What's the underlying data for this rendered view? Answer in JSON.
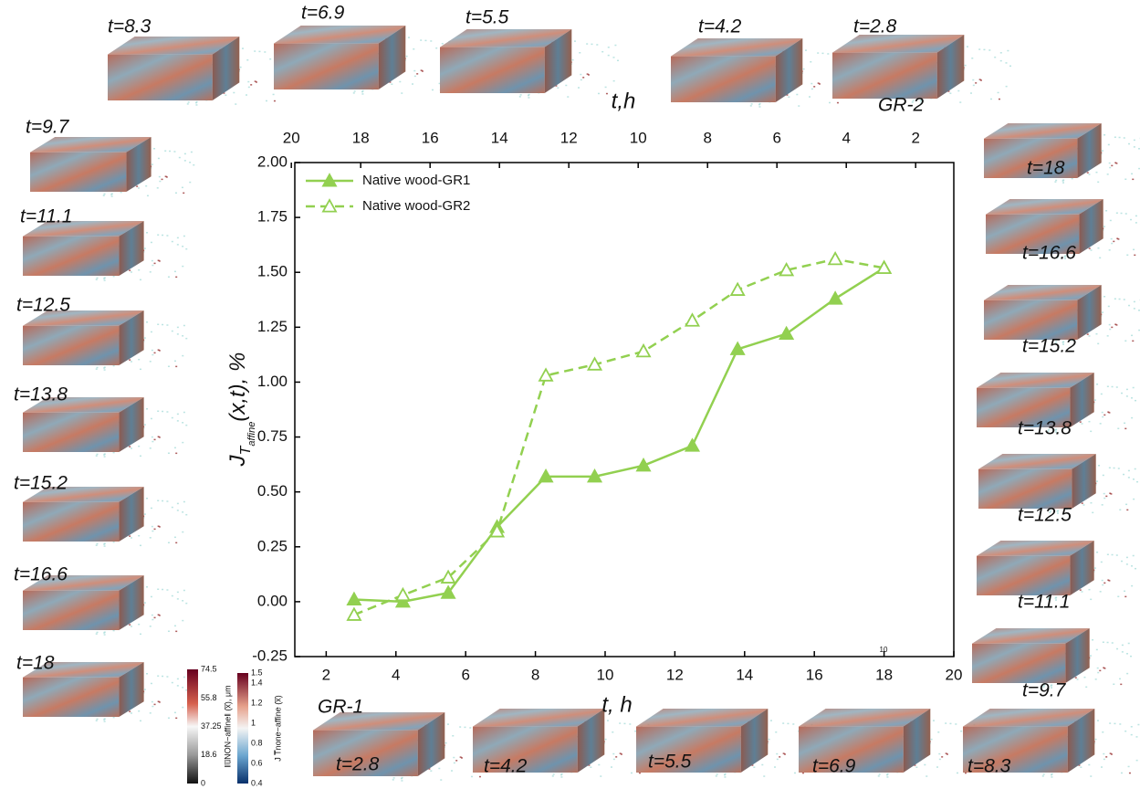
{
  "chart_data": {
    "type": "line",
    "x_label": "t, h",
    "x2_label": "t,h",
    "y_label": {
      "main": "J",
      "sub": "T",
      "subsub": "affine",
      "rest": "(x,t), %"
    },
    "xlim": [
      1.1,
      20
    ],
    "xticks": [
      2,
      4,
      6,
      8,
      10,
      12,
      14,
      16,
      18,
      20
    ],
    "x2lim": [
      19.9,
      0.9
    ],
    "x2ticks": [
      20,
      18,
      16,
      14,
      12,
      10,
      8,
      6,
      4,
      2
    ],
    "ylim": [
      -0.25,
      2.0
    ],
    "yticks": [
      {
        "value": -0.25,
        "label": "-0.25"
      },
      {
        "value": 0,
        "label": "0.00"
      },
      {
        "value": 0.25,
        "label": "0.25"
      },
      {
        "value": 0.5,
        "label": "0.50"
      },
      {
        "value": 0.75,
        "label": "0.75"
      },
      {
        "value": 1,
        "label": "1.00"
      },
      {
        "value": 1.25,
        "label": "1.25"
      },
      {
        "value": 1.5,
        "label": "1.50"
      },
      {
        "value": 1.75,
        "label": "1.75"
      },
      {
        "value": 2,
        "label": "2.00"
      }
    ],
    "legend": "top-left",
    "annotation": "10",
    "series": [
      {
        "name": "Native wood-GR1",
        "color": "#92d050",
        "dashed": false,
        "filled": true,
        "x": [
          2.8,
          4.2,
          5.5,
          6.9,
          8.3,
          9.7,
          11.1,
          12.5,
          13.8,
          15.2,
          16.6,
          18
        ],
        "values": [
          0.01,
          0.0,
          0.04,
          0.34,
          0.57,
          0.57,
          0.62,
          0.71,
          1.15,
          1.22,
          1.38,
          1.52
        ]
      },
      {
        "name": "Native wood-GR2",
        "color": "#92d050",
        "dashed": true,
        "filled": false,
        "x": [
          2.8,
          4.2,
          5.5,
          6.9,
          8.3,
          9.7,
          11.1,
          12.5,
          13.8,
          15.2,
          16.6,
          18
        ],
        "values": [
          -0.06,
          0.03,
          0.11,
          0.32,
          1.03,
          1.08,
          1.14,
          1.28,
          1.42,
          1.51,
          1.56,
          1.52
        ]
      }
    ]
  },
  "group_labels": [
    "GR-1",
    "GR-2"
  ],
  "panels": {
    "top": [
      "t=8.3",
      "t=6.9",
      "t=5.5",
      "t=4.2",
      "t=2.8"
    ],
    "left": [
      "t=9.7",
      "t=11.1",
      "t=12.5",
      "t=13.8",
      "t=15.2",
      "t=16.6",
      "t=18"
    ],
    "right": [
      "t=18",
      "t=16.6",
      "t=15.2",
      "t=13.8",
      "t=12.5",
      "t=11.1",
      "t=9.7"
    ],
    "bottom": [
      "t=2.8",
      "t=4.2",
      "t=5.5",
      "t=6.9",
      "t=8.3"
    ]
  },
  "colorbars": [
    {
      "title": "‖u̅NON−affine‖ (x̅), μm",
      "lim": [
        0,
        74.5
      ],
      "ticks": [
        74.5,
        55.8,
        37.25,
        18.6,
        0
      ]
    },
    {
      "title": "J T̅none−affine (x̅)",
      "lim": [
        0.4,
        1.5
      ],
      "ticks": [
        1.5,
        1.4,
        1.2,
        1,
        0.8,
        0.6,
        0.4
      ]
    }
  ]
}
